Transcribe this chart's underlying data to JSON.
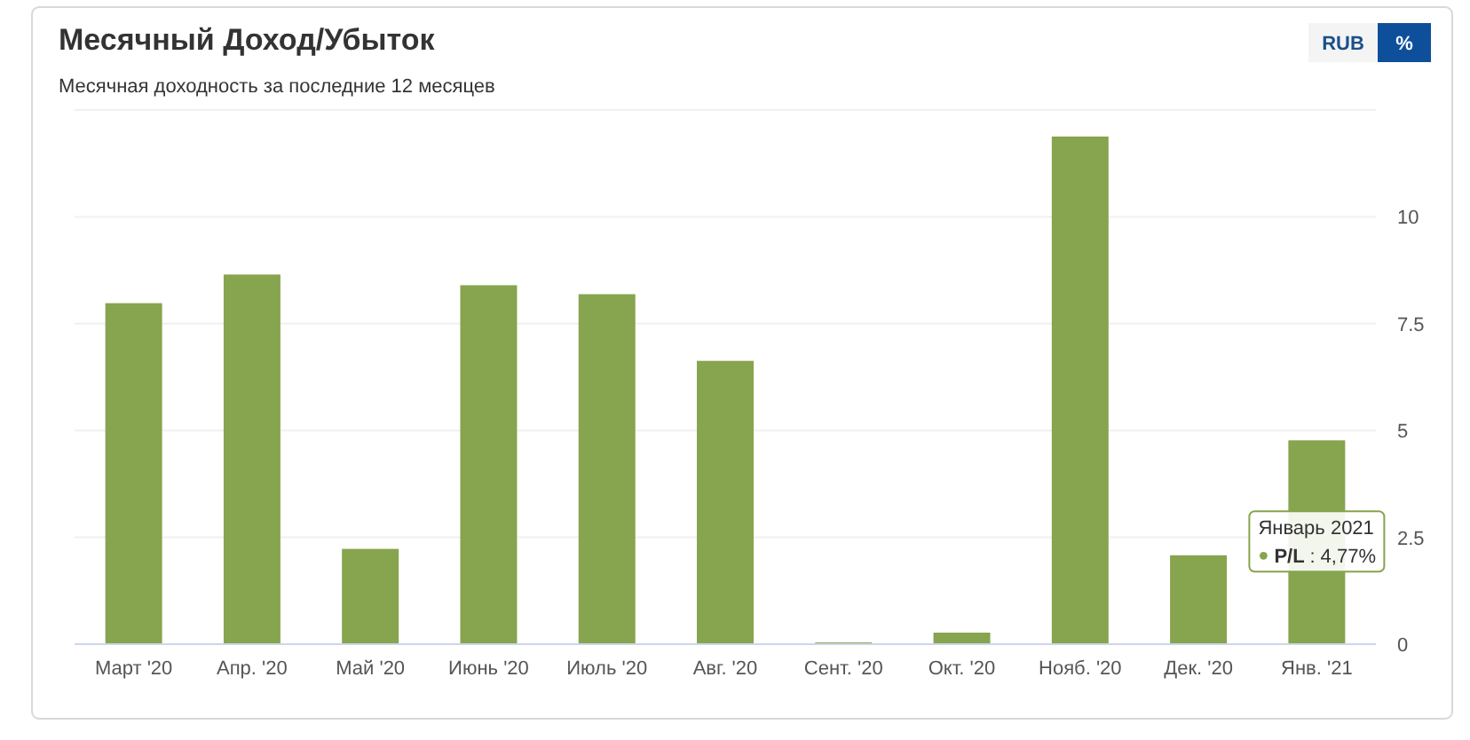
{
  "chart_data": {
    "type": "bar",
    "title": "Месячный Доход/Убыток",
    "subtitle": "Месячная доходность за последние 12 месяцев",
    "categories": [
      "Март '20",
      "Апр. '20",
      "Май '20",
      "Июнь '20",
      "Июль '20",
      "Авг. '20",
      "Сент. '20",
      "Окт. '20",
      "Нояб. '20",
      "Дек. '20",
      "Янв. '21"
    ],
    "series": [
      {
        "name": "P/L",
        "color": "#87a44e",
        "values": [
          7.98,
          8.65,
          2.23,
          8.4,
          8.19,
          6.63,
          0.04,
          0.27,
          11.88,
          2.08,
          4.77
        ],
        "value_labels": [
          null,
          null,
          null,
          null,
          null,
          null,
          null,
          null,
          null,
          null,
          ": 4,77%"
        ]
      }
    ],
    "ylim": [
      0,
      12.5
    ],
    "yticks": [
      0,
      2.5,
      5,
      7.5,
      10,
      {
        "value": 12.5,
        "label": null
      }
    ],
    "grid": "y",
    "legend": "right",
    "annotations": [
      "Январь 2021",
      "RUB",
      "%"
    ]
  }
}
